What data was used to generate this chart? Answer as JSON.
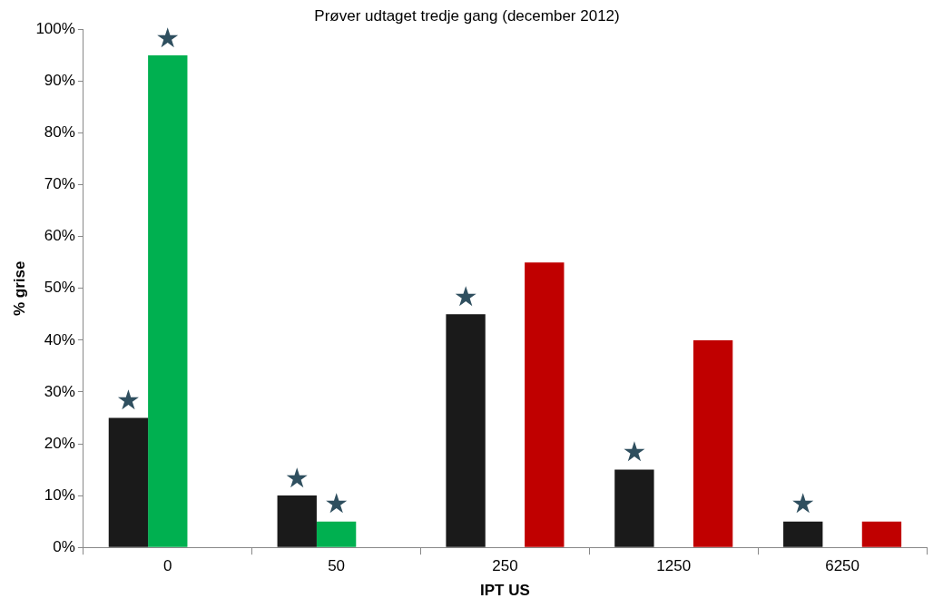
{
  "chart_data": {
    "type": "bar",
    "title": "Prøver udtaget tredje gang (december 2012)",
    "xlabel": "IPT US",
    "ylabel": "% grise",
    "categories": [
      "0",
      "50",
      "250",
      "1250",
      "6250"
    ],
    "series": [
      {
        "color": "#1a1a1a",
        "values": [
          25,
          10,
          45,
          15,
          5
        ],
        "value_labels": [
          "★",
          "★",
          "★",
          "★",
          "★"
        ]
      },
      {
        "color": "#00b050",
        "values": [
          95,
          5,
          null,
          null,
          null
        ],
        "value_labels": [
          "★",
          "★",
          null,
          null,
          null
        ]
      },
      {
        "color": "#c00000",
        "values": [
          null,
          null,
          55,
          40,
          5
        ]
      }
    ],
    "ylim": [
      0,
      100
    ],
    "yticks": [
      {
        "value": 0,
        "label": "0%"
      },
      {
        "value": 10,
        "label": "10%"
      },
      {
        "value": 20,
        "label": "20%"
      },
      {
        "value": 30,
        "label": "30%"
      },
      {
        "value": 40,
        "label": "40%"
      },
      {
        "value": 50,
        "label": "50%"
      },
      {
        "value": 60,
        "label": "60%"
      },
      {
        "value": 70,
        "label": "70%"
      },
      {
        "value": 80,
        "label": "80%"
      },
      {
        "value": 90,
        "label": "90%"
      },
      {
        "value": 100,
        "label": "100%"
      }
    ],
    "grid": false,
    "legend": false
  }
}
